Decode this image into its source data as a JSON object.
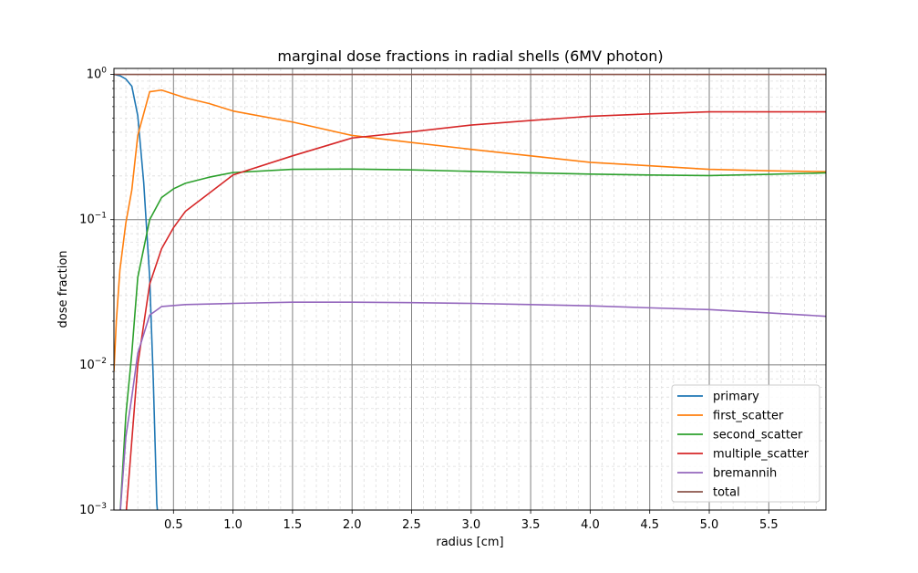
{
  "chart_data": {
    "type": "line",
    "title": "marginal dose fractions in radial shells (6MV photon)",
    "xlabel": "radius [cm]",
    "ylabel": "dose fraction",
    "xlim": [
      0.0,
      5.98
    ],
    "ylim": [
      0.001,
      1.1
    ],
    "yscale": "log",
    "grid": "major and minor",
    "legend_position": "lower right",
    "x_ticks": [
      {
        "value": 0.5,
        "label": "0.5"
      },
      {
        "value": 1.0,
        "label": "1.0"
      },
      {
        "value": 1.5,
        "label": "1.5"
      },
      {
        "value": 2.0,
        "label": "2.0"
      },
      {
        "value": 2.5,
        "label": "2.5"
      },
      {
        "value": 3.0,
        "label": "3.0"
      },
      {
        "value": 3.5,
        "label": "3.5"
      },
      {
        "value": 4.0,
        "label": "4.0"
      },
      {
        "value": 4.5,
        "label": "4.5"
      },
      {
        "value": 5.0,
        "label": "5.0"
      },
      {
        "value": 5.5,
        "label": "5.5"
      }
    ],
    "y_ticks": [
      {
        "value": 1.0,
        "base": "10",
        "exp": "0"
      },
      {
        "value": 0.1,
        "base": "10",
        "exp": "−1"
      },
      {
        "value": 0.01,
        "base": "10",
        "exp": "−2"
      },
      {
        "value": 0.001,
        "base": "10",
        "exp": "−3"
      }
    ],
    "series": [
      {
        "name": "primary",
        "color": "#1f77b4",
        "points": [
          [
            0.0,
            1.0
          ],
          [
            0.05,
            0.98
          ],
          [
            0.1,
            0.93
          ],
          [
            0.15,
            0.83
          ],
          [
            0.2,
            0.52
          ],
          [
            0.25,
            0.18
          ],
          [
            0.3,
            0.04
          ],
          [
            0.33,
            0.008
          ],
          [
            0.36,
            0.0011
          ],
          [
            0.37,
            0.0009
          ]
        ]
      },
      {
        "name": "first_scatter",
        "color": "#ff7f0e",
        "points": [
          [
            0.0,
            0.009
          ],
          [
            0.02,
            0.02
          ],
          [
            0.05,
            0.045
          ],
          [
            0.1,
            0.095
          ],
          [
            0.15,
            0.16
          ],
          [
            0.2,
            0.38
          ],
          [
            0.3,
            0.76
          ],
          [
            0.4,
            0.78
          ],
          [
            0.6,
            0.69
          ],
          [
            0.8,
            0.63
          ],
          [
            1.0,
            0.56
          ],
          [
            1.5,
            0.47
          ],
          [
            2.0,
            0.38
          ],
          [
            2.5,
            0.34
          ],
          [
            3.0,
            0.305
          ],
          [
            3.5,
            0.275
          ],
          [
            4.0,
            0.248
          ],
          [
            4.5,
            0.235
          ],
          [
            5.0,
            0.222
          ],
          [
            5.5,
            0.217
          ],
          [
            5.98,
            0.214
          ]
        ]
      },
      {
        "name": "second_scatter",
        "color": "#2ca02c",
        "points": [
          [
            0.05,
            0.0009
          ],
          [
            0.1,
            0.0045
          ],
          [
            0.15,
            0.012
          ],
          [
            0.2,
            0.04
          ],
          [
            0.3,
            0.1
          ],
          [
            0.4,
            0.142
          ],
          [
            0.5,
            0.163
          ],
          [
            0.6,
            0.178
          ],
          [
            0.8,
            0.196
          ],
          [
            1.0,
            0.211
          ],
          [
            1.5,
            0.222
          ],
          [
            2.0,
            0.223
          ],
          [
            2.5,
            0.22
          ],
          [
            3.0,
            0.215
          ],
          [
            3.5,
            0.21
          ],
          [
            4.0,
            0.206
          ],
          [
            4.5,
            0.203
          ],
          [
            5.0,
            0.201
          ],
          [
            5.5,
            0.205
          ],
          [
            5.98,
            0.21
          ]
        ]
      },
      {
        "name": "multiple_scatter",
        "color": "#d62728",
        "points": [
          [
            0.1,
            0.0009
          ],
          [
            0.15,
            0.003
          ],
          [
            0.2,
            0.01
          ],
          [
            0.3,
            0.036
          ],
          [
            0.4,
            0.063
          ],
          [
            0.5,
            0.088
          ],
          [
            0.6,
            0.114
          ],
          [
            0.8,
            0.152
          ],
          [
            1.0,
            0.203
          ],
          [
            1.5,
            0.275
          ],
          [
            2.0,
            0.365
          ],
          [
            2.5,
            0.403
          ],
          [
            3.0,
            0.448
          ],
          [
            3.5,
            0.482
          ],
          [
            4.0,
            0.515
          ],
          [
            4.5,
            0.535
          ],
          [
            5.0,
            0.553
          ],
          [
            5.5,
            0.553
          ],
          [
            5.98,
            0.553
          ]
        ]
      },
      {
        "name": "bremannih",
        "color": "#9467bd",
        "points": [
          [
            0.05,
            0.0009
          ],
          [
            0.1,
            0.0032
          ],
          [
            0.15,
            0.006
          ],
          [
            0.2,
            0.012
          ],
          [
            0.3,
            0.022
          ],
          [
            0.4,
            0.0252
          ],
          [
            0.6,
            0.026
          ],
          [
            1.0,
            0.0265
          ],
          [
            1.5,
            0.027
          ],
          [
            2.0,
            0.027
          ],
          [
            2.5,
            0.0268
          ],
          [
            3.0,
            0.0265
          ],
          [
            3.5,
            0.026
          ],
          [
            4.0,
            0.0255
          ],
          [
            4.5,
            0.0247
          ],
          [
            5.0,
            0.024
          ],
          [
            5.5,
            0.0228
          ],
          [
            5.98,
            0.0216
          ]
        ]
      },
      {
        "name": "total",
        "color": "#8c564b",
        "points": [
          [
            0.0,
            1.0
          ],
          [
            5.98,
            1.0
          ]
        ]
      }
    ]
  }
}
